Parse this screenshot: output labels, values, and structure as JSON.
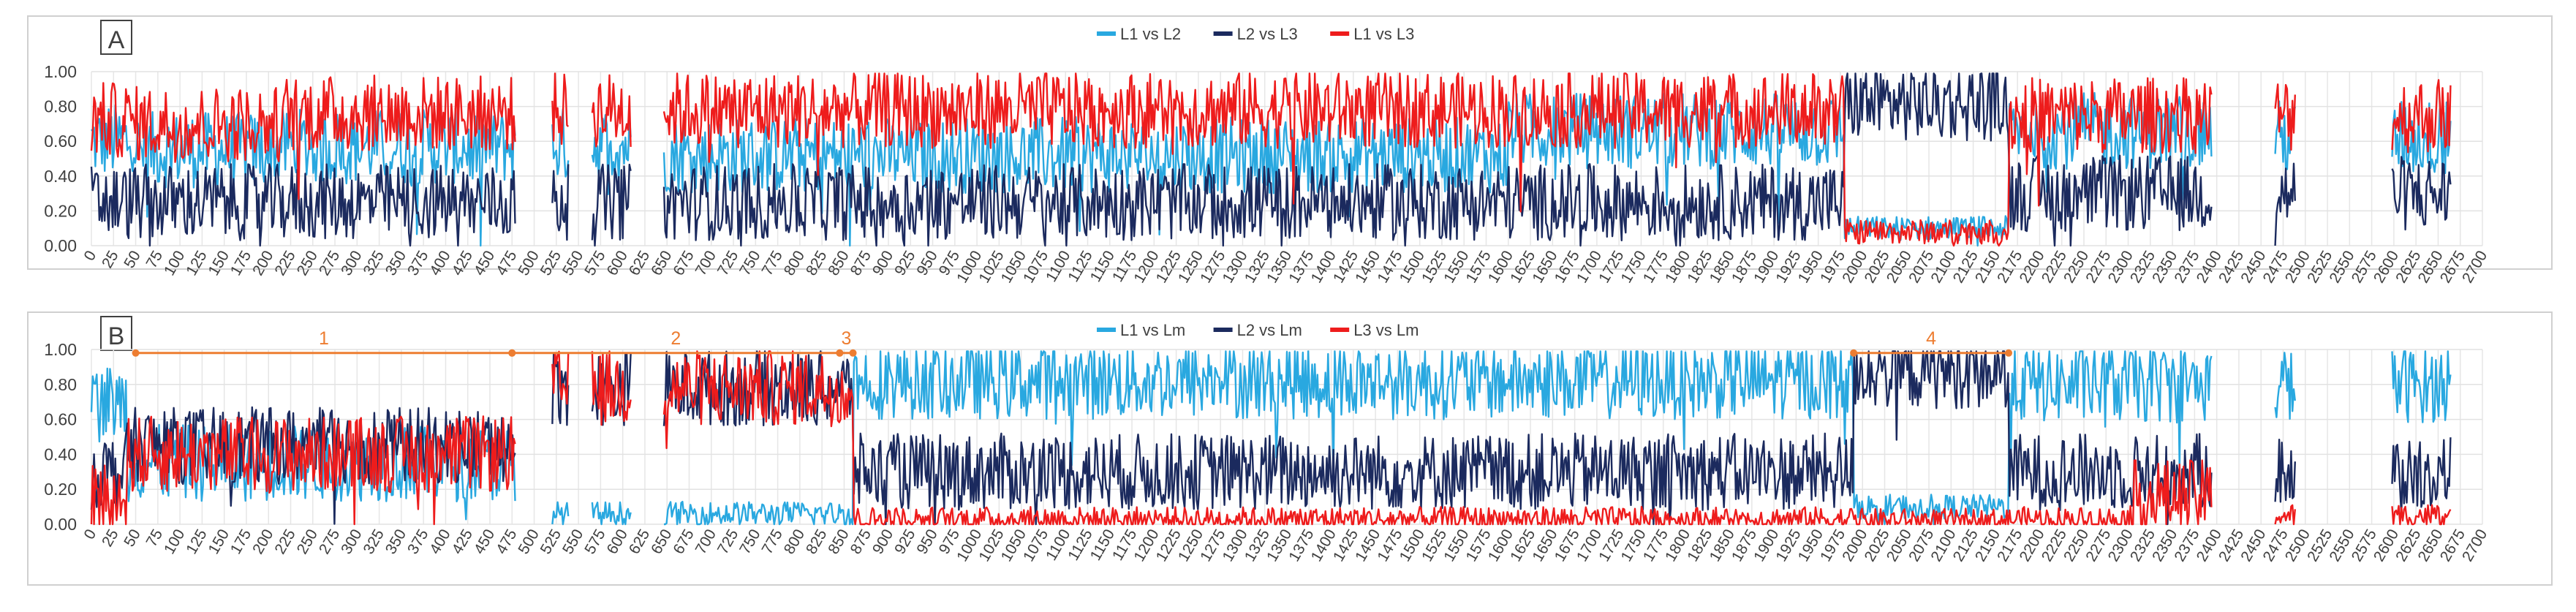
{
  "chart_data": [
    {
      "panel_label": "A",
      "type": "line",
      "xlim": [
        0,
        2700
      ],
      "x_tick_step": 25,
      "ylim": [
        0,
        1
      ],
      "y_ticks": [
        "0.00",
        "0.20",
        "0.40",
        "0.60",
        "0.80",
        "1.00"
      ],
      "grid": true,
      "legend_placement": "top-center",
      "gaps": [
        [
          480,
          520
        ],
        [
          540,
          565
        ],
        [
          610,
          645
        ],
        [
          2395,
          2465
        ],
        [
          2490,
          2590
        ]
      ],
      "series": [
        {
          "name": "L1 vs L2",
          "color": "#29a8e0",
          "level_profile": [
            [
              0,
              0.6
            ],
            [
              50,
              0.55
            ],
            [
              200,
              0.57
            ],
            [
              480,
              0.58
            ],
            [
              645,
              0.52
            ],
            [
              1600,
              0.66
            ],
            [
              1980,
              0.1
            ],
            [
              2165,
              0.66
            ],
            [
              2395,
              0.62
            ],
            [
              2700,
              0.58
            ]
          ]
        },
        {
          "name": "L2 vs L3",
          "color": "#1b2a5e",
          "level_profile": [
            [
              0,
              0.25
            ],
            [
              1980,
              0.82
            ],
            [
              2165,
              0.3
            ],
            [
              2700,
              0.22
            ]
          ]
        },
        {
          "name": "L1 vs L3",
          "color": "#ee1c1c",
          "level_profile": [
            [
              0,
              0.72
            ],
            [
              50,
              0.7
            ],
            [
              220,
              0.76
            ],
            [
              480,
              0.78
            ],
            [
              645,
              0.78
            ],
            [
              1980,
              0.08
            ],
            [
              2165,
              0.75
            ],
            [
              2700,
              0.7
            ]
          ]
        }
      ]
    },
    {
      "panel_label": "B",
      "type": "line",
      "xlim": [
        0,
        2700
      ],
      "x_tick_step": 25,
      "ylim": [
        0,
        1
      ],
      "y_ticks": [
        "0.00",
        "0.20",
        "0.40",
        "0.60",
        "0.80",
        "1.00"
      ],
      "grid": true,
      "legend_placement": "top-center",
      "gaps": [
        [
          480,
          520
        ],
        [
          540,
          565
        ],
        [
          610,
          645
        ],
        [
          2395,
          2465
        ],
        [
          2490,
          2590
        ]
      ],
      "annotations": [
        {
          "label": "1",
          "x_start": 50,
          "x_end": 475,
          "y": 0.98,
          "color": "#ed7d31"
        },
        {
          "label": "2",
          "x_start": 475,
          "x_end": 845,
          "y": 0.98,
          "color": "#ed7d31"
        },
        {
          "label": "3",
          "x_start": 845,
          "x_end": 860,
          "y": 0.98,
          "color": "#ed7d31"
        },
        {
          "label": "4",
          "x_start": 1990,
          "x_end": 2165,
          "y": 0.98,
          "color": "#ed7d31"
        }
      ],
      "series": [
        {
          "name": "L1 vs Lm",
          "color": "#29a8e0",
          "level_profile": [
            [
              0,
              0.7
            ],
            [
              40,
              0.35
            ],
            [
              480,
              0.06
            ],
            [
              860,
              0.82
            ],
            [
              1990,
              0.1
            ],
            [
              2165,
              0.8
            ],
            [
              2700,
              0.75
            ]
          ]
        },
        {
          "name": "L2 vs Lm",
          "color": "#1b2a5e",
          "level_profile": [
            [
              0,
              0.3
            ],
            [
              40,
              0.45
            ],
            [
              480,
              0.78
            ],
            [
              860,
              0.3
            ],
            [
              1990,
              0.88
            ],
            [
              2165,
              0.3
            ],
            [
              2700,
              0.25
            ]
          ]
        },
        {
          "name": "L3 vs Lm",
          "color": "#ee1c1c",
          "level_profile": [
            [
              0,
              0.15
            ],
            [
              40,
              0.4
            ],
            [
              480,
              0.78
            ],
            [
              860,
              0.03
            ],
            [
              1990,
              0.02
            ],
            [
              2165,
              0.03
            ],
            [
              2300,
              0.15
            ],
            [
              2400,
              0.05
            ],
            [
              2700,
              0.05
            ]
          ]
        }
      ]
    }
  ]
}
